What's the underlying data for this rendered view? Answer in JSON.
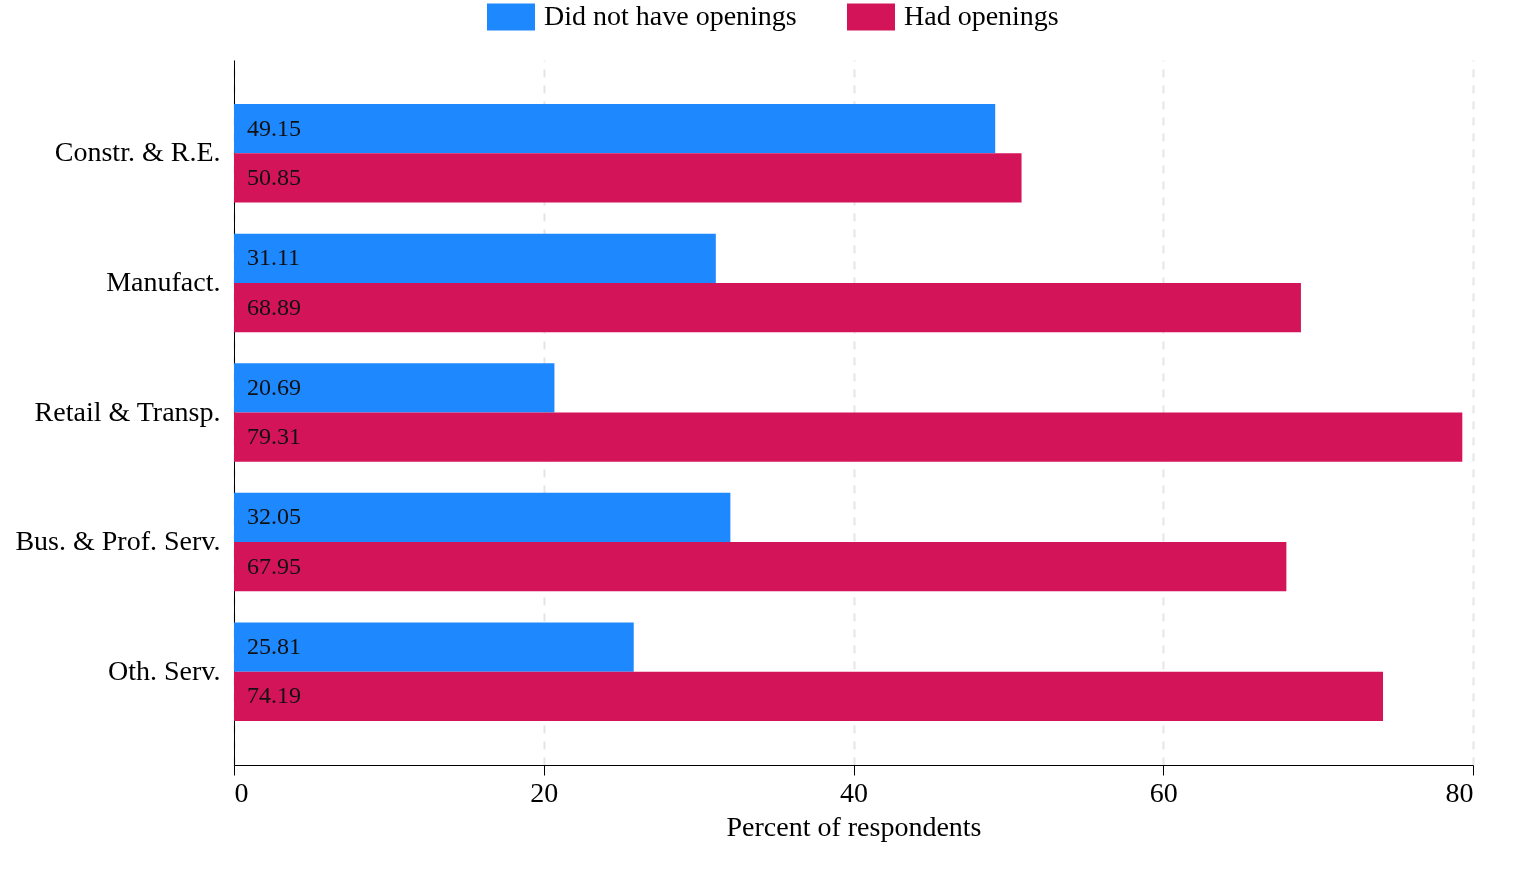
{
  "chart_data": {
    "type": "bar",
    "orientation": "horizontal",
    "xlabel": "Percent of respondents",
    "categories": [
      "Constr. & R.E.",
      "Manufact.",
      "Retail & Transp.",
      "Bus. & Prof. Serv.",
      "Oth. Serv."
    ],
    "series": [
      {
        "name": "Did not have openings",
        "color": "#1e88ff",
        "values": [
          49.15,
          31.11,
          20.69,
          32.05,
          25.81
        ]
      },
      {
        "name": "Had openings",
        "color": "#d41459",
        "values": [
          50.85,
          68.89,
          79.31,
          67.95,
          74.19
        ]
      }
    ],
    "xlim": [
      0,
      80
    ],
    "xticks": [
      0,
      20,
      40,
      60,
      80
    ],
    "grid": "x",
    "legend": "top",
    "data_labels": true
  }
}
